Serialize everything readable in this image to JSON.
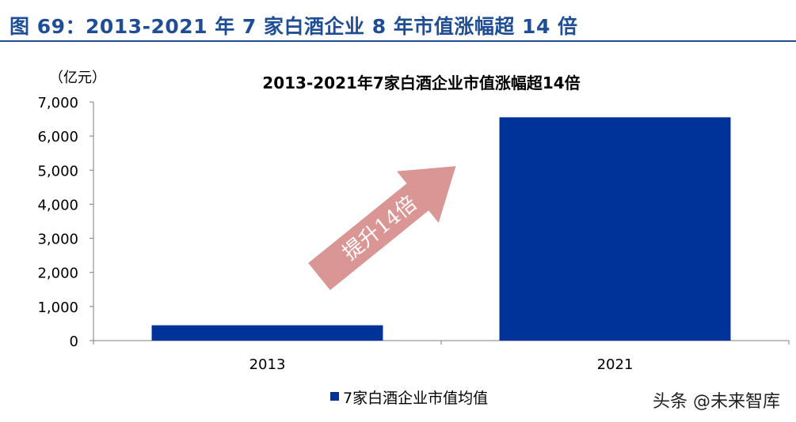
{
  "figure_title": "图 69：2013-2021 年 7 家白酒企业 8 年市值涨幅超 14 倍",
  "watermark": "头条 @未来智库",
  "colors": {
    "header": "#1f4e96",
    "bar": "#003399",
    "arrow": "#d99694",
    "axis": "#7f7f7f"
  },
  "chart_data": {
    "type": "bar",
    "title": "2013-2021年7家白酒企业市值涨幅超14倍",
    "ylabel": "（亿元）",
    "xlabel": "",
    "categories": [
      "2013",
      "2021"
    ],
    "series": [
      {
        "name": "7家白酒企业市值均值",
        "values": [
          450,
          6550
        ]
      }
    ],
    "ylim": [
      0,
      7000
    ],
    "yticks": [
      0,
      1000,
      2000,
      3000,
      4000,
      5000,
      6000,
      7000
    ],
    "ytick_labels": [
      "0",
      "1,000",
      "2,000",
      "3,000",
      "4,000",
      "5,000",
      "6,000",
      "7,000"
    ],
    "grid": false,
    "legend": "bottom-center",
    "annotation": {
      "text": "提升14倍",
      "shape": "arrow-up-right"
    }
  }
}
